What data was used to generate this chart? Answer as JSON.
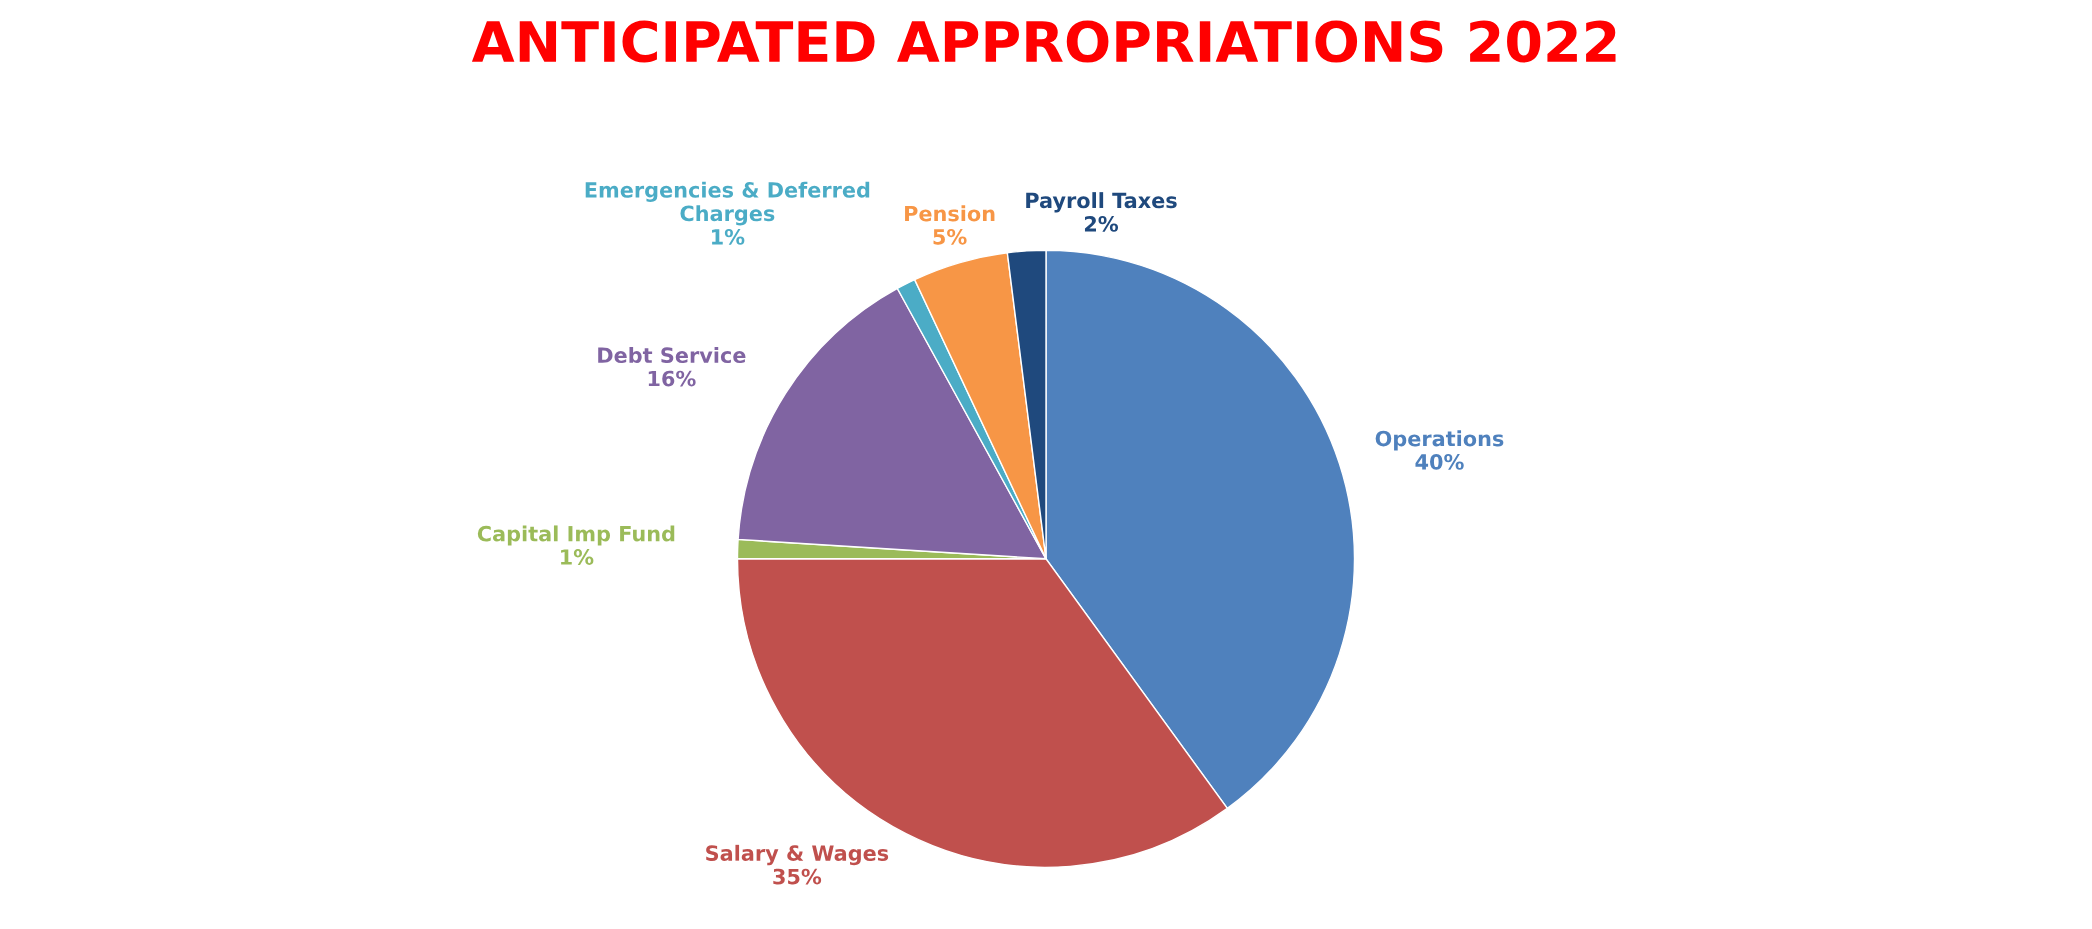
{
  "chart_data": {
    "type": "pie",
    "title": "ANTICIPATED APPROPRIATIONS 2022",
    "categories": [
      "Operations",
      "Salary & Wages",
      "Capital Imp Fund",
      "Debt Service",
      "Emergencies & Deferred Charges",
      "Pension",
      "Payroll Taxes"
    ],
    "values": [
      40,
      35,
      1,
      16,
      1,
      5,
      2
    ],
    "value_labels": [
      "40%",
      "35%",
      "1%",
      "16%",
      "1%",
      "5%",
      "2%"
    ],
    "colors": [
      "#4f81bd",
      "#c0504d",
      "#9bbb59",
      "#8064a2",
      "#4bacc6",
      "#f79646",
      "#1f497d"
    ],
    "legend": false
  }
}
